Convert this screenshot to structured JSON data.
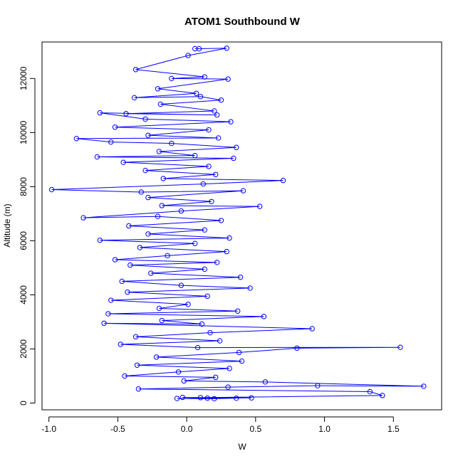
{
  "chart_data": {
    "type": "line",
    "title": "ATOM1 Southbound W",
    "xlabel": "W",
    "ylabel": "Altitude (m)",
    "xlim": [
      -1.05,
      1.85
    ],
    "ylim": [
      -250,
      13350
    ],
    "x_ticks": [
      -1.0,
      -0.5,
      0.0,
      0.5,
      1.0,
      1.5
    ],
    "x_tick_labels": [
      "-1.0",
      "-0.5",
      "0.0",
      "0.5",
      "1.0",
      "1.5"
    ],
    "y_ticks": [
      0,
      2000,
      4000,
      6000,
      8000,
      10000,
      12000
    ],
    "y_tick_labels": [
      "0",
      "2000",
      "4000",
      "6000",
      "8000",
      "10000",
      "12000"
    ],
    "grid": false,
    "marker": "open-circle",
    "series": [
      {
        "color": "#0000ff",
        "points": [
          [
            0.06,
            13100
          ],
          [
            0.09,
            13100
          ],
          [
            0.29,
            13120
          ],
          [
            0.01,
            12850
          ],
          [
            -0.37,
            12330
          ],
          [
            0.13,
            12060
          ],
          [
            -0.11,
            12000
          ],
          [
            0.3,
            11980
          ],
          [
            -0.21,
            11620
          ],
          [
            0.07,
            11450
          ],
          [
            -0.38,
            11290
          ],
          [
            0.1,
            11330
          ],
          [
            0.25,
            11200
          ],
          [
            -0.19,
            11050
          ],
          [
            0.2,
            10800
          ],
          [
            -0.44,
            10700
          ],
          [
            0.22,
            10650
          ],
          [
            -0.63,
            10730
          ],
          [
            -0.3,
            10500
          ],
          [
            0.32,
            10400
          ],
          [
            -0.52,
            10200
          ],
          [
            0.16,
            10100
          ],
          [
            -0.28,
            9900
          ],
          [
            0.23,
            9800
          ],
          [
            -0.8,
            9780
          ],
          [
            -0.55,
            9650
          ],
          [
            -0.11,
            9600
          ],
          [
            0.36,
            9450
          ],
          [
            -0.2,
            9300
          ],
          [
            0.06,
            9150
          ],
          [
            -0.65,
            9100
          ],
          [
            0.34,
            9050
          ],
          [
            -0.46,
            8900
          ],
          [
            0.16,
            8750
          ],
          [
            -0.3,
            8600
          ],
          [
            0.21,
            8450
          ],
          [
            -0.17,
            8300
          ],
          [
            0.7,
            8230
          ],
          [
            0.12,
            8100
          ],
          [
            -0.98,
            7890
          ],
          [
            -0.33,
            7800
          ],
          [
            0.41,
            7850
          ],
          [
            -0.28,
            7600
          ],
          [
            0.18,
            7450
          ],
          [
            -0.18,
            7300
          ],
          [
            0.53,
            7270
          ],
          [
            -0.04,
            7100
          ],
          [
            -0.75,
            6850
          ],
          [
            -0.21,
            6900
          ],
          [
            0.25,
            6750
          ],
          [
            -0.42,
            6550
          ],
          [
            0.13,
            6400
          ],
          [
            -0.28,
            6250
          ],
          [
            0.31,
            6100
          ],
          [
            -0.63,
            6020
          ],
          [
            0.06,
            5900
          ],
          [
            -0.34,
            5750
          ],
          [
            0.29,
            5600
          ],
          [
            -0.14,
            5450
          ],
          [
            -0.52,
            5300
          ],
          [
            0.22,
            5200
          ],
          [
            -0.41,
            5100
          ],
          [
            0.13,
            4950
          ],
          [
            -0.26,
            4800
          ],
          [
            0.39,
            4650
          ],
          [
            -0.47,
            4500
          ],
          [
            -0.04,
            4350
          ],
          [
            0.46,
            4250
          ],
          [
            -0.43,
            4100
          ],
          [
            0.15,
            3950
          ],
          [
            -0.55,
            3800
          ],
          [
            0.01,
            3650
          ],
          [
            -0.2,
            3500
          ],
          [
            0.37,
            3400
          ],
          [
            -0.57,
            3300
          ],
          [
            0.56,
            3200
          ],
          [
            -0.18,
            3050
          ],
          [
            0.11,
            2920
          ],
          [
            -0.6,
            2950
          ],
          [
            0.91,
            2750
          ],
          [
            0.17,
            2600
          ],
          [
            -0.37,
            2450
          ],
          [
            0.24,
            2300
          ],
          [
            -0.48,
            2170
          ],
          [
            0.08,
            2050
          ],
          [
            1.55,
            2060
          ],
          [
            0.8,
            2030
          ],
          [
            0.38,
            1870
          ],
          [
            -0.22,
            1700
          ],
          [
            0.4,
            1550
          ],
          [
            -0.36,
            1400
          ],
          [
            0.31,
            1280
          ],
          [
            -0.06,
            1150
          ],
          [
            -0.45,
            1000
          ],
          [
            0.21,
            950
          ],
          [
            -0.02,
            820
          ],
          [
            0.57,
            780
          ],
          [
            1.72,
            620
          ],
          [
            0.95,
            640
          ],
          [
            0.3,
            590
          ],
          [
            -0.35,
            520
          ],
          [
            1.33,
            420
          ],
          [
            1.42,
            280
          ],
          [
            0.1,
            200
          ],
          [
            0.47,
            190
          ],
          [
            -0.07,
            170
          ],
          [
            0.2,
            160
          ],
          [
            0.36,
            180
          ],
          [
            -0.03,
            210
          ],
          [
            0.15,
            180
          ]
        ]
      }
    ]
  }
}
